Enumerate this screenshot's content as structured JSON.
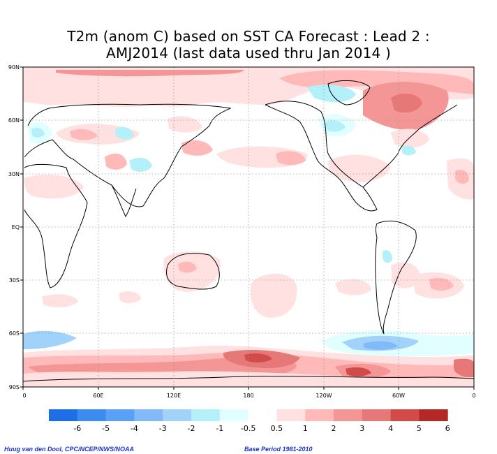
{
  "title": {
    "line1": "T2m (anom C) based on SST CA Forecast : Lead 2 :",
    "line2": "AMJ2014 (last data used thru Jan 2014 )"
  },
  "axes": {
    "lat_labels": [
      "90N",
      "60N",
      "30N",
      "EQ",
      "30S",
      "60S",
      "90S"
    ],
    "lon_labels": [
      "0",
      "60E",
      "120E",
      "180",
      "120W",
      "60W",
      "0"
    ]
  },
  "legend": {
    "labels": [
      "-6",
      "-5",
      "-4",
      "-3",
      "-2",
      "-1",
      "-0.5",
      "0.5",
      "1",
      "2",
      "3",
      "4",
      "5",
      "6"
    ],
    "colors": [
      "#1e6ee6",
      "#3c8cf0",
      "#5aa0f5",
      "#82b9f8",
      "#a0d2fa",
      "#b4f0fa",
      "#e1ffff",
      "#ffffff",
      "#ffe1e1",
      "#ffb9b9",
      "#f59696",
      "#e67878",
      "#d24b4b",
      "#b42828"
    ]
  },
  "credits": {
    "author": "Huug van den Dool, CPC/NCEP/NWS/NOAA",
    "base_period": "Base Period 1981-2010"
  }
}
